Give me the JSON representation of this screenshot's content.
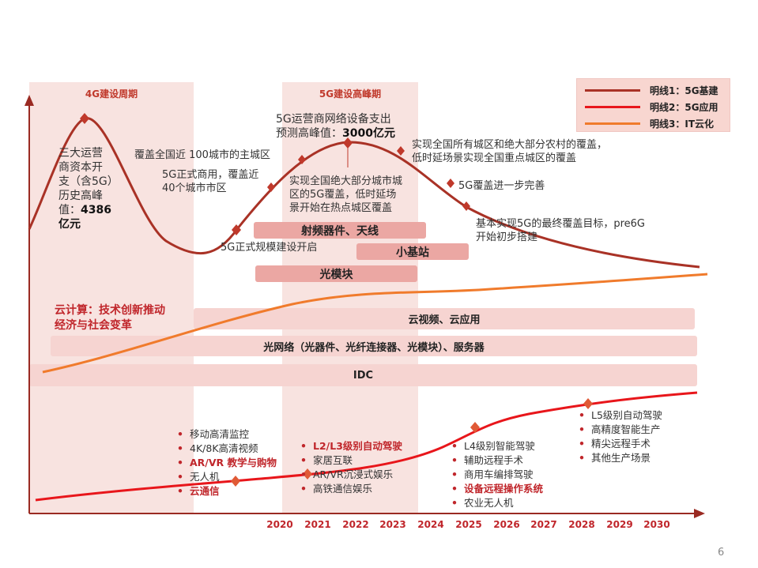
{
  "periods": {
    "p4g": "4G建设周期",
    "p5g": "5G建设高峰期"
  },
  "legend": [
    {
      "label": "明线1：5G基建",
      "color": "#a93226"
    },
    {
      "label": "明线2：5G应用",
      "color": "#e8161b"
    },
    {
      "label": "明线3：IT云化",
      "color": "#f07b2c"
    }
  ],
  "annotations": {
    "left_block": [
      "三大运营",
      "商资本开",
      "支（含5G）",
      "历史高峰",
      "值："
    ],
    "left_value": "4386",
    "left_unit": "亿元",
    "peak_line1": "5G运营商网络设备支出",
    "peak_line2_prefix": "预测高峰值：",
    "peak_value": "3000亿元",
    "a_100city": "覆盖全国近 100城市的主城区",
    "a_40city_1": "5G正式商用，覆盖近",
    "a_40city_2": "40个城市市区",
    "a_allcity_1": "实现全国绝大部分城市城",
    "a_allcity_2": "区的5G覆盖，低时延场",
    "a_allcity_3": "景开始在热点城区覆盖",
    "a_rural_1": "实现全国所有城区和绝大部分农村的覆盖，",
    "a_rural_2": "低时延场景实现全国重点城区的覆盖",
    "a_improve": "5G覆盖进一步完善",
    "a_final_1": "基本实现5G的最终覆盖目标，pre6G",
    "a_final_2": "开始初步搭建",
    "a_scale": "5G正式规模建设开启"
  },
  "bars": {
    "rf": "射频器件、天线",
    "small_cell": "小基站",
    "optical_module": "光模块",
    "cloud_video": "云视频、云应用",
    "optical_network": "光网络（光器件、光纤连接器、光模块）、服务器",
    "idc": "IDC"
  },
  "cloud": {
    "title1": "云计算：技术创新推动",
    "title2": "经济与社会变革"
  },
  "apps": {
    "group1": [
      "移动高清监控",
      "4K/8K高清视频",
      "AR/VR 教学与购物",
      "无人机",
      "云通信"
    ],
    "group2": [
      "L2/L3级别自动驾驶",
      "家居互联",
      "AR/VR沉浸式娱乐",
      "高铁通信娱乐"
    ],
    "group3": [
      "L4级别智能驾驶",
      "辅助远程手术",
      "商用车编排驾驶",
      "设备远程操作系统",
      "农业无人机"
    ],
    "group4": [
      "L5级别自动驾驶",
      "高精度智能生产",
      "精尖远程手术",
      "其他生产场景"
    ]
  },
  "years": [
    "2020",
    "2021",
    "2022",
    "2023",
    "2024",
    "2025",
    "2026",
    "2027",
    "2028",
    "2029",
    "2030"
  ],
  "page_number": "6",
  "colors": {
    "line1": "#a93226",
    "line2": "#e8161b",
    "line3": "#f07b2c",
    "marker": "#c0392b",
    "band": "#f8e3e0"
  }
}
